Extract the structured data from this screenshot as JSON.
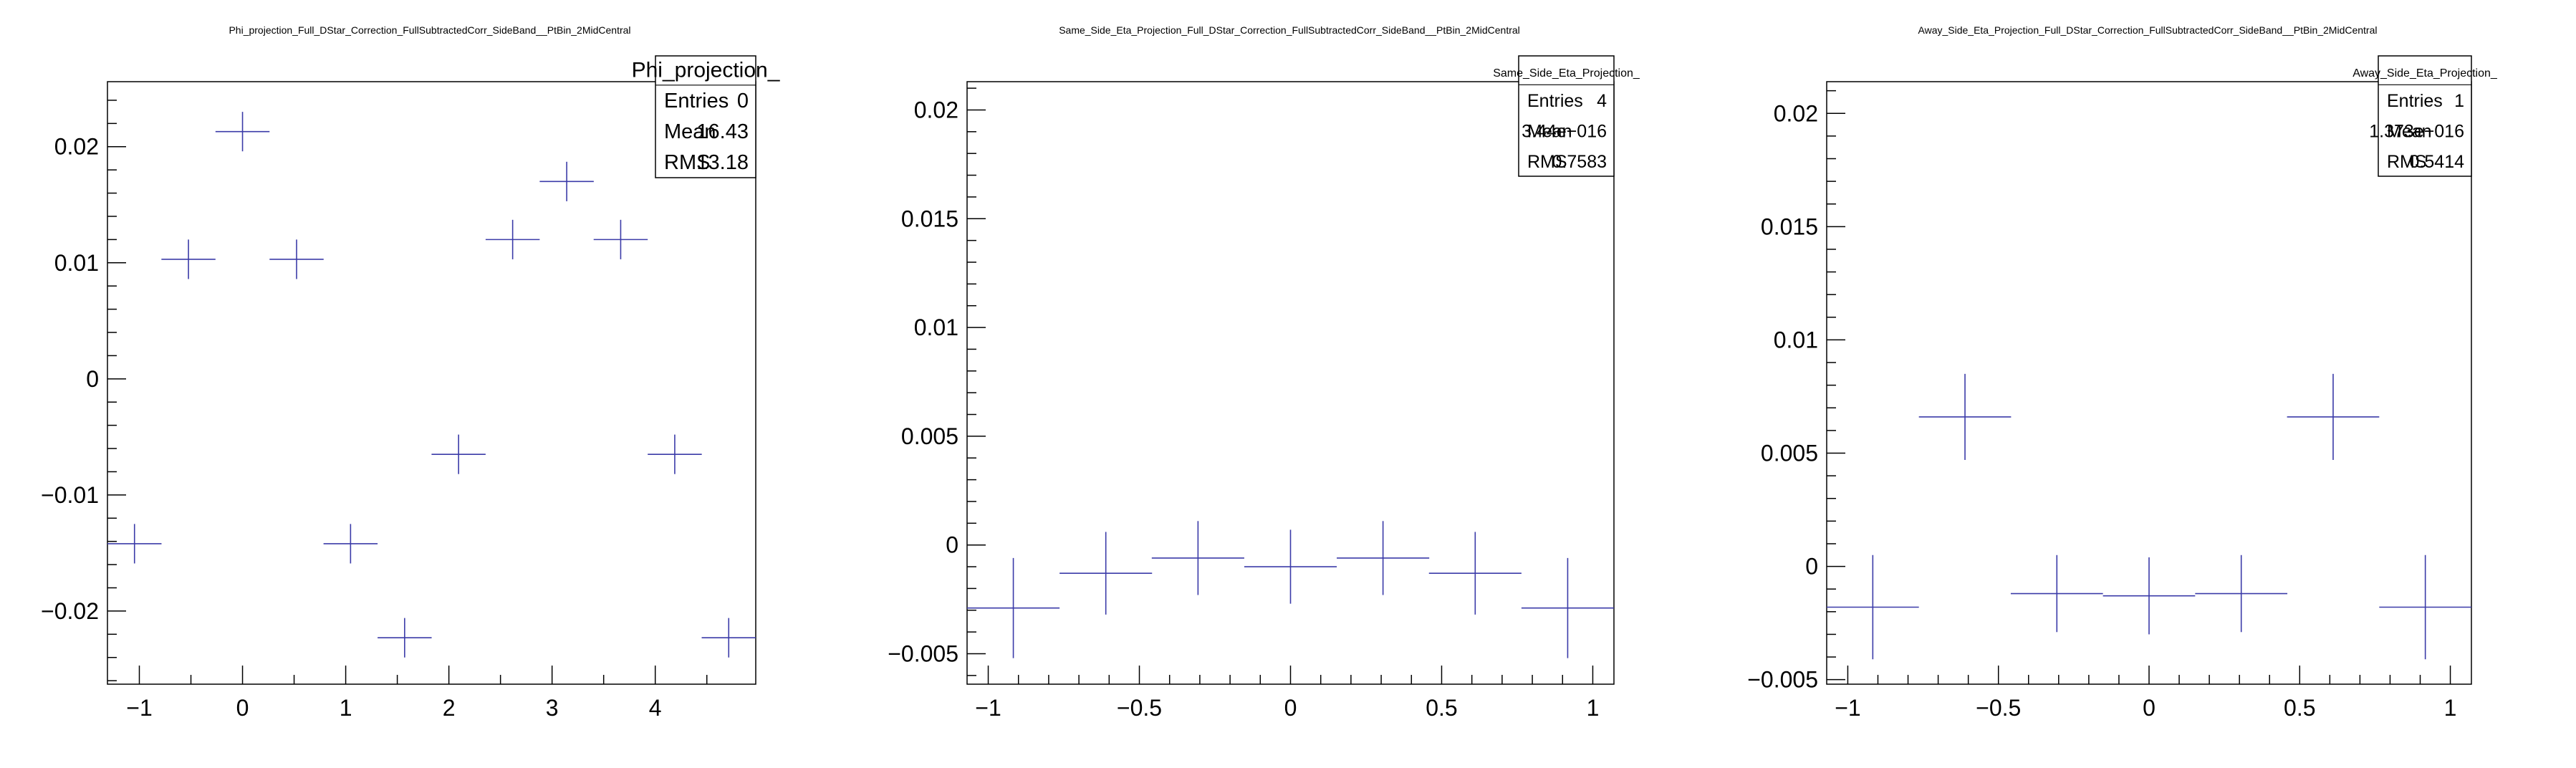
{
  "chart_data": [
    {
      "type": "scatter",
      "title": "Phi_projection_Full_DStar_Correction_FullSubtractedCorr_SideBand__PtBin_2MidCentral",
      "xlabel": "",
      "ylabel": "",
      "xlim": [
        -1.309,
        4.974
      ],
      "ylim": [
        -0.0263,
        0.0256
      ],
      "xticks": [
        -1,
        0,
        1,
        2,
        3,
        4
      ],
      "xtick_labels": [
        "−1",
        "0",
        "1",
        "2",
        "3",
        "4"
      ],
      "yticks": [
        -0.02,
        -0.01,
        0,
        0.01,
        0.02
      ],
      "ytick_labels": [
        "−0.02",
        "−0.01",
        "0",
        "0.01",
        "0.02"
      ],
      "series": [
        {
          "x": [
            -1.047,
            -0.524,
            0.0,
            0.524,
            1.047,
            1.571,
            2.094,
            2.618,
            3.142,
            3.665,
            4.189,
            4.712
          ],
          "y": [
            -0.0142,
            0.0103,
            0.0213,
            0.0103,
            -0.0142,
            -0.0223,
            -0.0065,
            0.012,
            0.017,
            0.012,
            -0.0065,
            -0.0223
          ],
          "xerr": [
            0.262,
            0.262,
            0.262,
            0.262,
            0.262,
            0.262,
            0.262,
            0.262,
            0.262,
            0.262,
            0.262,
            0.262
          ],
          "yerr": [
            0.0017,
            0.0017,
            0.0017,
            0.0017,
            0.0017,
            0.0017,
            0.0017,
            0.0017,
            0.0017,
            0.0017,
            0.0017,
            0.0017
          ]
        }
      ],
      "stats": {
        "name": "Phi_projection_",
        "rows": [
          {
            "label": "Entries",
            "value": "0"
          },
          {
            "label": "Mean",
            "value": "16.43"
          },
          {
            "label": "RMS",
            "value": "13.18"
          }
        ]
      },
      "grid": false,
      "legend": "top-right"
    },
    {
      "type": "scatter",
      "title": "Same_Side_Eta_Projection_Full_DStar_Correction_FullSubtractedCorr_SideBand__PtBin_2MidCentral",
      "xlabel": "",
      "ylabel": "",
      "xlim": [
        -1.07,
        1.07
      ],
      "ylim": [
        -0.0064,
        0.0213
      ],
      "xticks": [
        -1,
        -0.5,
        0,
        0.5,
        1
      ],
      "xtick_labels": [
        "−1",
        "−0.5",
        "0",
        "0.5",
        "1"
      ],
      "yticks": [
        -0.005,
        0,
        0.005,
        0.01,
        0.015,
        0.02
      ],
      "ytick_labels": [
        "−0.005",
        "0",
        "0.005",
        "0.01",
        "0.015",
        "0.02"
      ],
      "series": [
        {
          "x": [
            -0.917,
            -0.611,
            -0.306,
            0.0,
            0.306,
            0.611,
            0.917
          ],
          "y": [
            -0.0029,
            -0.0013,
            -0.0006,
            -0.001,
            -0.0006,
            -0.0013,
            -0.0029
          ],
          "xerr": [
            0.153,
            0.153,
            0.153,
            0.153,
            0.153,
            0.153,
            0.153
          ],
          "yerr": [
            0.0023,
            0.0019,
            0.0017,
            0.0017,
            0.0017,
            0.0019,
            0.0023
          ]
        }
      ],
      "stats": {
        "name": "Same_Side_Eta_Projection_",
        "rows": [
          {
            "label": "Entries",
            "value": "4"
          },
          {
            "label": "Mean",
            "value": "3.44e−016"
          },
          {
            "label": "RMS",
            "value": "0.7583"
          }
        ]
      },
      "grid": false,
      "legend": "top-right"
    },
    {
      "type": "scatter",
      "title": "Away_Side_Eta_Projection_Full_DStar_Correction_FullSubtractedCorr_SideBand__PtBin_2MidCentral",
      "xlabel": "",
      "ylabel": "",
      "xlim": [
        -1.07,
        1.07
      ],
      "ylim": [
        -0.0052,
        0.0214
      ],
      "xticks": [
        -1,
        -0.5,
        0,
        0.5,
        1
      ],
      "xtick_labels": [
        "−1",
        "−0.5",
        "0",
        "0.5",
        "1"
      ],
      "yticks": [
        -0.005,
        0,
        0.005,
        0.01,
        0.015,
        0.02
      ],
      "ytick_labels": [
        "−0.005",
        "0",
        "0.005",
        "0.01",
        "0.015",
        "0.02"
      ],
      "series": [
        {
          "x": [
            -0.917,
            -0.611,
            -0.306,
            0.0,
            0.306,
            0.611,
            0.917
          ],
          "y": [
            -0.0018,
            0.0066,
            -0.0012,
            -0.0013,
            -0.0012,
            0.0066,
            -0.0018
          ],
          "xerr": [
            0.153,
            0.153,
            0.153,
            0.153,
            0.153,
            0.153,
            0.153
          ],
          "yerr": [
            0.0023,
            0.0019,
            0.0017,
            0.0017,
            0.0017,
            0.0019,
            0.0023
          ]
        }
      ],
      "stats": {
        "name": "Away_Side_Eta_Projection_",
        "rows": [
          {
            "label": "Entries",
            "value": "1"
          },
          {
            "label": "Mean",
            "value": "1.373e−016"
          },
          {
            "label": "RMS",
            "value": "0.5414"
          }
        ]
      },
      "grid": false,
      "legend": "top-right"
    }
  ],
  "colors": {
    "marker": "#3b3ba8",
    "axis": "#000000",
    "background": "#ffffff"
  }
}
